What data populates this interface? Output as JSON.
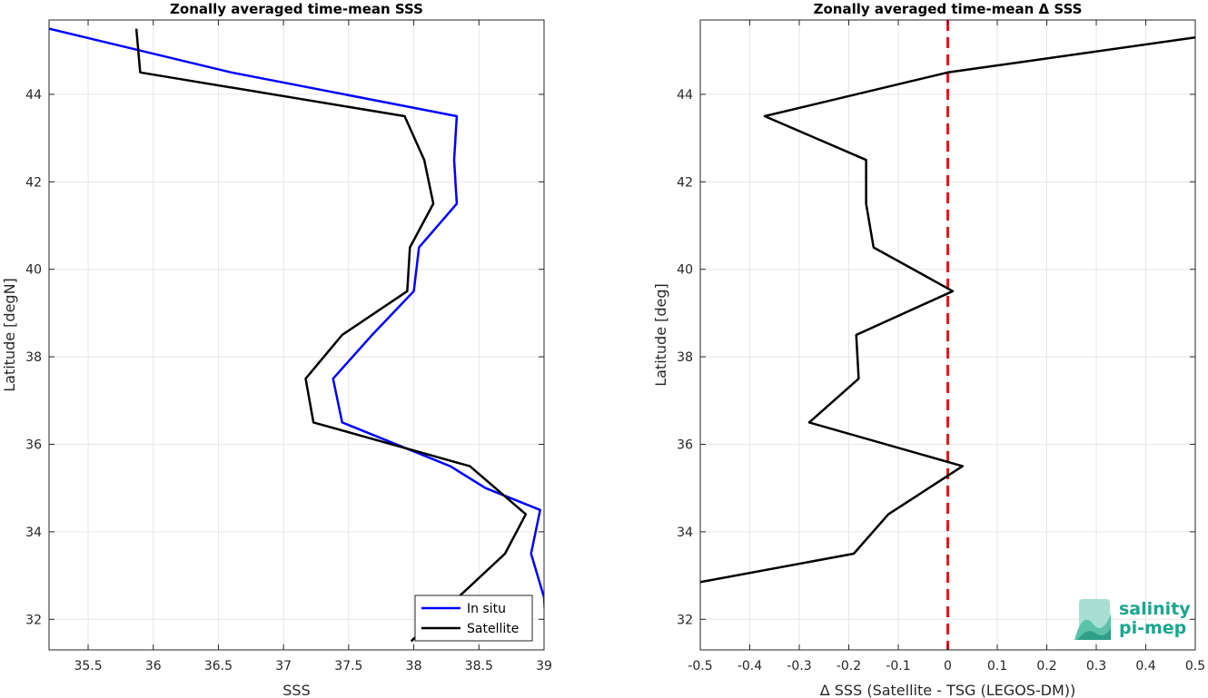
{
  "chart_data": [
    {
      "type": "line",
      "title": "Zonally averaged time-mean SSS",
      "xlabel": "SSS",
      "ylabel": "Latitude [degN]",
      "xlim": [
        35.2,
        39.0
      ],
      "ylim": [
        31.3,
        45.7
      ],
      "xticks": [
        35.5,
        36,
        36.5,
        37,
        37.5,
        38,
        38.5,
        39
      ],
      "xtick_labels": [
        "35.5",
        "36",
        "36.5",
        "37",
        "37.5",
        "38",
        "38.5",
        "39"
      ],
      "yticks": [
        32,
        34,
        36,
        38,
        40,
        42,
        44
      ],
      "ytick_labels": [
        "32",
        "34",
        "36",
        "38",
        "40",
        "42",
        "44"
      ],
      "grid": true,
      "legend": "bottom-right",
      "series": [
        {
          "name": "In situ",
          "color": "#0000ff",
          "x": [
            39.02,
            39.0,
            38.9,
            38.97,
            38.55,
            38.28,
            37.45,
            37.38,
            37.68,
            38.0,
            38.04,
            38.33,
            38.31,
            38.33,
            36.6,
            35.2
          ],
          "y": [
            31.5,
            32.5,
            33.5,
            34.5,
            35.0,
            35.5,
            36.5,
            37.5,
            38.5,
            39.5,
            40.5,
            41.5,
            42.5,
            43.5,
            44.5,
            45.5
          ]
        },
        {
          "name": "Satellite",
          "color": "#000000",
          "x": [
            37.98,
            38.7,
            38.86,
            38.43,
            37.23,
            37.17,
            37.45,
            37.95,
            37.97,
            38.15,
            38.08,
            37.93,
            35.9,
            35.87
          ],
          "y": [
            31.5,
            33.5,
            34.4,
            35.5,
            36.5,
            37.5,
            38.5,
            39.5,
            40.5,
            41.5,
            42.5,
            43.5,
            44.5,
            45.5
          ]
        }
      ]
    },
    {
      "type": "line",
      "title": "Zonally averaged time-mean Δ SSS",
      "xlabel": "Δ SSS (Satellite - TSG (LEGOS-DM))",
      "ylabel": "Latitude [deg]",
      "xlim": [
        -0.5,
        0.5
      ],
      "ylim": [
        31.3,
        45.7
      ],
      "xticks": [
        -0.5,
        -0.4,
        -0.3,
        -0.2,
        -0.1,
        0,
        0.1,
        0.2,
        0.3,
        0.4,
        0.5
      ],
      "xtick_labels": [
        "-0.5",
        "-0.4",
        "-0.3",
        "-0.2",
        "-0.1",
        "0",
        "0.1",
        "0.2",
        "0.3",
        "0.4",
        "0.5"
      ],
      "yticks": [
        32,
        34,
        36,
        38,
        40,
        42,
        44
      ],
      "ytick_labels": [
        "32",
        "34",
        "36",
        "38",
        "40",
        "42",
        "44"
      ],
      "grid": true,
      "reference_line": {
        "x": 0,
        "color": "#e41a1c",
        "style": "dashed"
      },
      "series": [
        {
          "color": "#000000",
          "x": [
            -0.5,
            -0.19,
            -0.12,
            0.03,
            -0.28,
            -0.18,
            -0.185,
            0.01,
            -0.15,
            -0.165,
            -0.165,
            -0.37,
            0.0,
            0.5
          ],
          "y": [
            32.85,
            33.5,
            34.4,
            35.5,
            36.5,
            37.5,
            38.5,
            39.5,
            40.5,
            41.5,
            42.5,
            43.5,
            44.5,
            45.3
          ]
        }
      ]
    }
  ],
  "logo": {
    "line1": "salinity",
    "line2": "pi-mep",
    "color": "#1aa68f"
  }
}
